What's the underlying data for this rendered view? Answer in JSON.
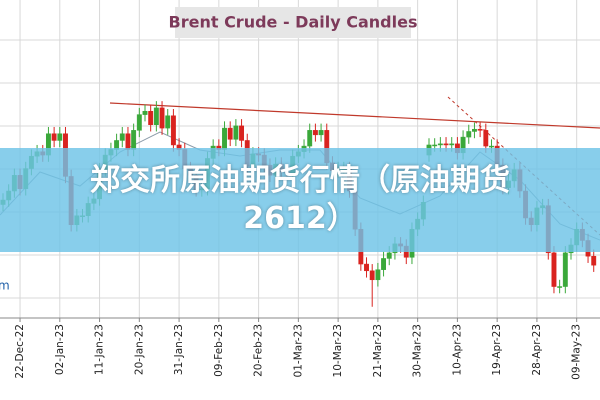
{
  "chart_data": {
    "type": "candlestick",
    "title": "Brent Crude - Daily Candles",
    "overlay_text": "郑交所原油期货行情（原油期货2612）",
    "left_edge_text": "m",
    "up_color": "#3aa83a",
    "down_color": "#d9231f",
    "ylim": [
      69.5,
      97.8
    ],
    "categories": [
      null,
      null,
      null,
      "22-Dec-22",
      null,
      null,
      null,
      null,
      null,
      null,
      "02-Jan-23",
      null,
      null,
      null,
      null,
      null,
      null,
      "11-Jan-23",
      null,
      null,
      null,
      null,
      null,
      null,
      "20-Jan-23",
      null,
      null,
      null,
      null,
      null,
      null,
      "31-Jan-23",
      null,
      null,
      null,
      null,
      null,
      null,
      "09-Feb-23",
      null,
      null,
      null,
      null,
      null,
      null,
      "20-Feb-23",
      null,
      null,
      null,
      null,
      null,
      null,
      "01-Mar-23",
      null,
      null,
      null,
      null,
      null,
      null,
      "10-Mar-23",
      null,
      null,
      null,
      null,
      null,
      null,
      "21-Mar-23",
      null,
      null,
      null,
      null,
      null,
      null,
      "30-Mar-23",
      null,
      null,
      null,
      null,
      null,
      null,
      "10-Apr-23",
      null,
      null,
      null,
      null,
      null,
      null,
      "19-Apr-23",
      null,
      null,
      null,
      null,
      null,
      null,
      "28-Apr-23",
      null,
      null,
      null,
      null,
      null,
      null,
      "09-May-23",
      null,
      null,
      null
    ],
    "open": [
      79.6,
      80.0,
      80.8,
      82.2,
      81.0,
      82.8,
      83.9,
      84.3,
      84.0,
      85.9,
      85.3,
      85.9,
      82.1,
      77.8,
      78.6,
      78.6,
      79.7,
      80.1,
      82.7,
      84.0,
      84.5,
      85.3,
      85.9,
      84.5,
      86.2,
      87.6,
      87.9,
      86.7,
      88.2,
      86.4,
      87.5,
      84.9,
      84.5,
      82.8,
      82.2,
      80.9,
      81.0,
      83.7,
      84.8,
      84.5,
      86.4,
      85.4,
      86.6,
      85.3,
      83.0,
      84.1,
      84.0,
      83.1,
      82.2,
      83.2,
      82.5,
      82.4,
      83.9,
      84.3,
      84.8,
      86.2,
      85.8,
      86.2,
      83.3,
      82.6,
      82.8,
      82.8,
      80.8,
      77.4,
      74.3,
      73.7,
      72.9,
      73.8,
      74.8,
      75.3,
      76.1,
      75.9,
      74.9,
      77.4,
      78.3,
      84.0,
      84.9,
      84.9,
      85.0,
      84.9,
      85.0,
      84.2,
      85.6,
      86.1,
      86.3,
      86.2,
      84.8,
      84.8,
      83.1,
      81.1,
      81.7,
      82.7,
      80.8,
      78.4,
      77.8,
      79.3,
      79.5,
      75.3,
      72.3,
      72.3,
      75.3,
      76.0,
      77.4,
      76.4,
      75.0
    ],
    "high": [
      80.6,
      81.4,
      82.8,
      82.8,
      83.4,
      84.5,
      84.9,
      84.9,
      86.5,
      86.5,
      86.5,
      86.5,
      82.7,
      79.2,
      79.2,
      80.3,
      80.7,
      83.3,
      84.6,
      85.1,
      85.9,
      86.5,
      86.5,
      86.8,
      88.2,
      88.5,
      88.5,
      88.8,
      88.8,
      88.1,
      88.1,
      85.5,
      85.1,
      83.4,
      82.8,
      81.6,
      84.3,
      85.4,
      85.4,
      87.0,
      87.0,
      87.2,
      87.2,
      85.9,
      84.7,
      84.7,
      84.6,
      83.7,
      83.8,
      83.8,
      83.1,
      84.5,
      84.9,
      85.4,
      86.8,
      86.8,
      86.8,
      86.8,
      83.9,
      83.4,
      83.4,
      83.4,
      81.4,
      78.0,
      74.9,
      74.3,
      74.4,
      75.4,
      75.9,
      76.7,
      76.7,
      76.5,
      78.0,
      78.9,
      80.4,
      85.5,
      85.5,
      85.6,
      85.6,
      85.6,
      85.6,
      86.2,
      86.7,
      86.9,
      86.9,
      86.8,
      85.4,
      85.4,
      83.7,
      82.3,
      83.3,
      83.3,
      81.4,
      79.0,
      79.9,
      80.1,
      80.1,
      75.9,
      72.9,
      75.9,
      76.6,
      78.0,
      78.0,
      77.0,
      75.6
    ],
    "low": [
      79.0,
      79.4,
      80.2,
      80.4,
      80.4,
      82.2,
      83.3,
      83.4,
      83.4,
      84.7,
      84.7,
      81.5,
      77.2,
      77.2,
      78.0,
      78.0,
      79.1,
      79.5,
      82.1,
      83.4,
      83.9,
      84.7,
      83.9,
      83.9,
      85.6,
      87.0,
      86.1,
      86.1,
      85.8,
      85.8,
      84.3,
      83.9,
      82.2,
      81.6,
      80.3,
      80.3,
      80.4,
      83.1,
      83.9,
      83.9,
      84.8,
      84.8,
      84.7,
      82.4,
      82.4,
      83.4,
      82.5,
      81.6,
      81.6,
      81.9,
      81.8,
      81.8,
      83.3,
      83.7,
      84.2,
      85.2,
      85.2,
      82.7,
      82.0,
      82.0,
      82.2,
      80.2,
      76.8,
      73.7,
      73.1,
      70.5,
      72.3,
      73.2,
      74.2,
      74.7,
      75.3,
      74.3,
      74.3,
      76.8,
      77.7,
      83.4,
      84.3,
      84.3,
      84.3,
      84.3,
      83.6,
      83.6,
      85.0,
      85.5,
      85.6,
      84.2,
      84.2,
      82.5,
      80.5,
      80.5,
      81.1,
      80.2,
      77.8,
      77.2,
      77.2,
      78.7,
      74.7,
      71.7,
      71.7,
      71.7,
      74.7,
      75.4,
      75.8,
      74.4,
      73.6
    ],
    "close": [
      80.0,
      80.8,
      82.2,
      81.0,
      82.8,
      83.9,
      84.3,
      84.0,
      85.9,
      85.3,
      85.9,
      82.1,
      77.8,
      78.6,
      78.6,
      79.7,
      80.1,
      82.7,
      84.0,
      84.5,
      85.3,
      85.9,
      84.5,
      86.2,
      87.6,
      87.9,
      86.7,
      88.2,
      86.4,
      87.5,
      84.9,
      84.5,
      82.8,
      82.2,
      80.9,
      81.0,
      83.7,
      84.8,
      84.5,
      86.4,
      85.4,
      86.6,
      85.3,
      83.0,
      84.1,
      84.0,
      83.1,
      82.2,
      83.2,
      82.5,
      82.4,
      83.9,
      84.3,
      84.8,
      86.2,
      85.8,
      86.2,
      83.3,
      82.6,
      82.8,
      82.8,
      80.8,
      77.4,
      74.3,
      73.7,
      72.9,
      73.8,
      74.8,
      75.3,
      76.1,
      75.9,
      74.9,
      77.4,
      78.3,
      79.8,
      84.9,
      84.9,
      85.0,
      84.9,
      85.0,
      84.2,
      85.6,
      86.1,
      86.3,
      86.2,
      84.8,
      84.8,
      83.1,
      81.1,
      81.7,
      82.7,
      80.8,
      78.4,
      77.8,
      79.3,
      79.5,
      75.3,
      72.3,
      72.3,
      75.3,
      76.0,
      77.4,
      76.4,
      75.0,
      74.2
    ]
  }
}
